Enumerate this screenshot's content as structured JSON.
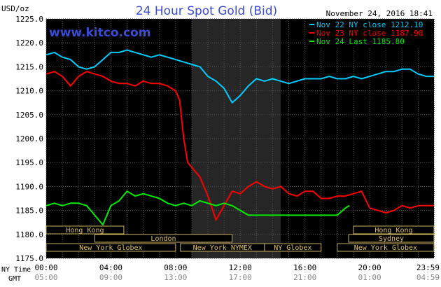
{
  "chart_data": {
    "type": "line",
    "title": "24 Hour Spot Gold (Bid)",
    "watermark": "www.kitco.com",
    "timestamp": "November 24, 2016 18:41",
    "ylabel": "USD/oz",
    "ylim": [
      1175,
      1225
    ],
    "yticks": [
      "1225.0",
      "1220.0",
      "1215.0",
      "1210.0",
      "1205.0",
      "1200.0",
      "1195.0",
      "1190.0",
      "1185.0",
      "1180.0",
      "1175.0"
    ],
    "xlim_hours": [
      0,
      23.98
    ],
    "ny_time_label": "NY Time",
    "gmt_label": "GMT",
    "ny_ticks": [
      "00:00",
      "04:00",
      "08:00",
      "12:00",
      "16:00",
      "20:00",
      "23:59"
    ],
    "gmt_ticks": [
      "05:00",
      "09:00",
      "13:00",
      "17:00",
      "21:00",
      "01:00",
      "04:59"
    ],
    "tick_hours": [
      0,
      4,
      8,
      12,
      16,
      20,
      23.98
    ],
    "shaded_range_hours": [
      9,
      14.5
    ],
    "grid": true,
    "legend_position": "top-right",
    "series": [
      {
        "name": "Nov 22 NY close 1212.10",
        "color": "#00ccff",
        "x": [
          0,
          0.5,
          1,
          1.5,
          2,
          2.5,
          3,
          3.5,
          4,
          4.5,
          5,
          5.5,
          6,
          6.5,
          7,
          7.5,
          8,
          8.5,
          9,
          9.5,
          10,
          10.5,
          11,
          11.5,
          12,
          12.5,
          13,
          13.5,
          14,
          14.5,
          15,
          15.5,
          16,
          16.5,
          17,
          17.5,
          18,
          18.5,
          19,
          19.5,
          20,
          20.5,
          21,
          21.5,
          22,
          22.5,
          23,
          23.5,
          23.98
        ],
        "values": [
          1217.5,
          1218,
          1217,
          1216.5,
          1215,
          1214.5,
          1215,
          1216.5,
          1218,
          1218,
          1218.5,
          1218,
          1217.5,
          1217,
          1217.5,
          1217,
          1216.5,
          1216,
          1215.5,
          1215,
          1213,
          1212,
          1210.5,
          1207.5,
          1209,
          1211,
          1212.5,
          1212,
          1212.5,
          1212,
          1211.5,
          1212,
          1212.5,
          1212.5,
          1212.5,
          1213,
          1212.5,
          1212.5,
          1213,
          1212.5,
          1213,
          1213.5,
          1214,
          1214,
          1214.5,
          1214.5,
          1213.5,
          1213,
          1213
        ]
      },
      {
        "name": "Nov 23 NY close 1187.90",
        "color": "#ff0000",
        "x": [
          0,
          0.5,
          1,
          1.5,
          2,
          2.5,
          3,
          3.5,
          4,
          4.5,
          5,
          5.5,
          6,
          6.5,
          7,
          7.5,
          8,
          8.25,
          8.5,
          8.75,
          9,
          9.5,
          10,
          10.5,
          11,
          11.5,
          12,
          12.5,
          13,
          13.5,
          14,
          14.5,
          15,
          15.5,
          16,
          16.5,
          17,
          17.5,
          18,
          18.5,
          19,
          19.5,
          20,
          20.5,
          21,
          21.5,
          22,
          22.5,
          23,
          23.5,
          23.98
        ],
        "values": [
          1213.5,
          1214,
          1213,
          1211,
          1213,
          1214,
          1213.5,
          1213,
          1212,
          1211.5,
          1211.5,
          1211,
          1212,
          1211.5,
          1211.5,
          1211,
          1210,
          1208,
          1200,
          1195,
          1194,
          1192,
          1188,
          1183,
          1186,
          1189,
          1188.5,
          1190,
          1191,
          1190,
          1189.5,
          1190,
          1188.5,
          1188,
          1189,
          1189,
          1187.5,
          1187.5,
          1188,
          1188,
          1188.5,
          1189,
          1185.5,
          1185,
          1184.5,
          1185,
          1186,
          1185.5,
          1186,
          1186,
          1186
        ]
      },
      {
        "name": "Nov 24 Last 1185.80",
        "color": "#00ee00",
        "x": [
          0,
          0.5,
          1,
          1.5,
          2,
          2.5,
          3,
          3.5,
          4,
          4.5,
          5,
          5.5,
          6,
          6.5,
          7,
          7.5,
          8,
          8.5,
          9,
          9.5,
          10,
          10.5,
          11,
          11.5,
          12,
          12.5,
          13,
          13.5,
          14,
          14.5,
          15,
          15.5,
          16,
          16.5,
          17,
          17.5,
          18,
          18.5,
          18.75
        ],
        "values": [
          1186,
          1186.5,
          1186,
          1186.5,
          1186.5,
          1186,
          1184,
          1182,
          1186,
          1187,
          1189,
          1188,
          1188.5,
          1188,
          1187.5,
          1186.5,
          1186,
          1186.5,
          1186,
          1187,
          1186.5,
          1186,
          1186.5,
          1186,
          1185,
          1184,
          1184,
          1184,
          1184,
          1184,
          1184,
          1184,
          1184,
          1184,
          1184,
          1184,
          1184,
          1185.5,
          1186
        ]
      }
    ],
    "sessions": [
      {
        "name": "Hong Kong",
        "start": 0,
        "end": 4.8
      },
      {
        "name": "London",
        "start": 3.0,
        "end": 11.5
      },
      {
        "name": "New York Globex",
        "start": 0,
        "end": 8.0
      },
      {
        "name": "New York NYMEX",
        "start": 8.3,
        "end": 13.5
      },
      {
        "name": "NY Globex",
        "start": 13.5,
        "end": 17.0
      },
      {
        "name": "Hong Kong",
        "start": 19.0,
        "end": 23.98
      },
      {
        "name": "Sydney",
        "start": 18.7,
        "end": 23.98
      },
      {
        "name": "New York Globex",
        "start": 18.0,
        "end": 23.98
      }
    ]
  }
}
